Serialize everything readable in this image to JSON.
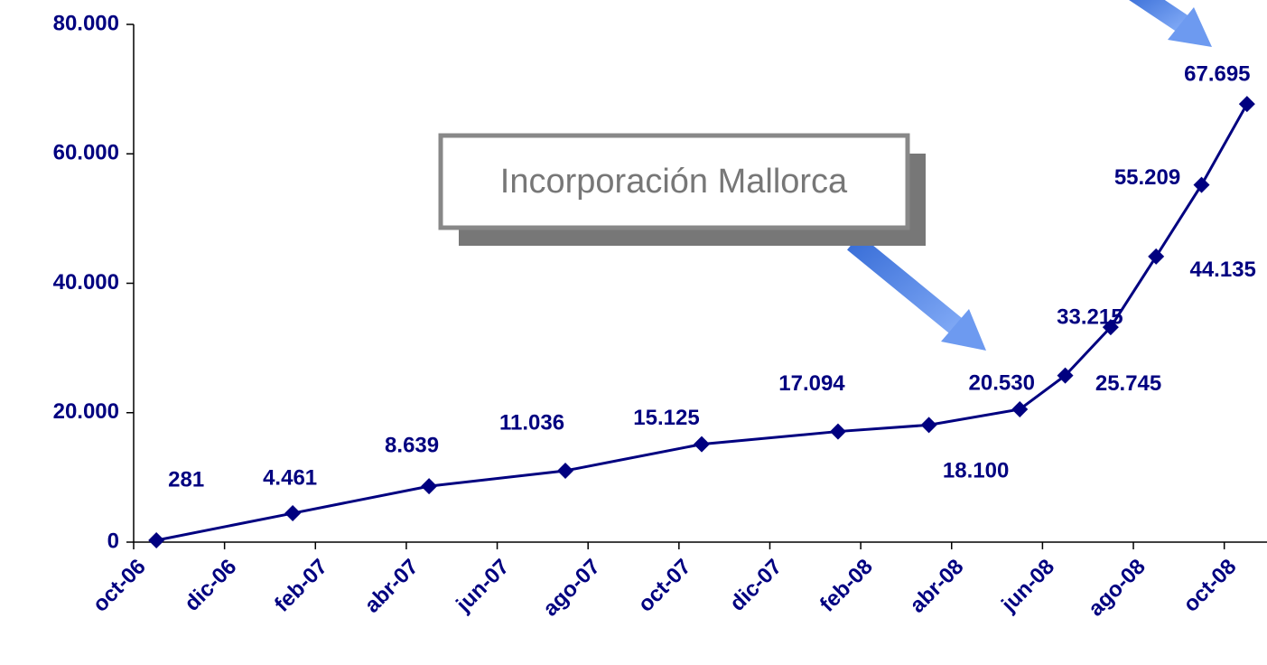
{
  "chart_data": {
    "type": "line",
    "annotation": "Incorporación Mallorca",
    "x": [
      "2006-10",
      "2007-01",
      "2007-04",
      "2007-07",
      "2007-10",
      "2008-01",
      "2008-03",
      "2008-05",
      "2008-06",
      "2008-07",
      "2008-08",
      "2008-09",
      "2008-10"
    ],
    "series": [
      {
        "color": "#000080",
        "values": [
          281,
          4461,
          8639,
          11036,
          15125,
          17094,
          18100,
          20530,
          25745,
          33215,
          44135,
          55209,
          67695
        ],
        "value_labels": [
          "281",
          "4.461",
          "8.639",
          "11.036",
          "15.125",
          "17.094",
          "18.100",
          "20.530",
          "25.745",
          "33.215",
          "44.135",
          "55.209",
          "67.695"
        ]
      }
    ],
    "xlim": [
      "2006-10",
      "2008-11"
    ],
    "xticks": [
      {
        "value": "2006-10",
        "label": "oct-06"
      },
      {
        "value": "2006-12",
        "label": "dic-06"
      },
      {
        "value": "2007-02",
        "label": "feb-07"
      },
      {
        "value": "2007-04",
        "label": "abr-07"
      },
      {
        "value": "2007-06",
        "label": "jun-07"
      },
      {
        "value": "2007-08",
        "label": "ago-07"
      },
      {
        "value": "2007-10",
        "label": "oct-07"
      },
      {
        "value": "2007-12",
        "label": "dic-07"
      },
      {
        "value": "2008-02",
        "label": "feb-08"
      },
      {
        "value": "2008-04",
        "label": "abr-08"
      },
      {
        "value": "2008-06",
        "label": "jun-08"
      },
      {
        "value": "2008-08",
        "label": "ago-08"
      },
      {
        "value": "2008-10",
        "label": "oct-08"
      }
    ],
    "ylim": [
      0,
      80000
    ],
    "yticks": [
      0,
      {
        "value": 20000,
        "label": "20.000"
      },
      {
        "value": 40000,
        "label": "40.000"
      },
      {
        "value": 60000,
        "label": "60.000"
      },
      {
        "value": 80000,
        "label": "80.000"
      }
    ]
  }
}
